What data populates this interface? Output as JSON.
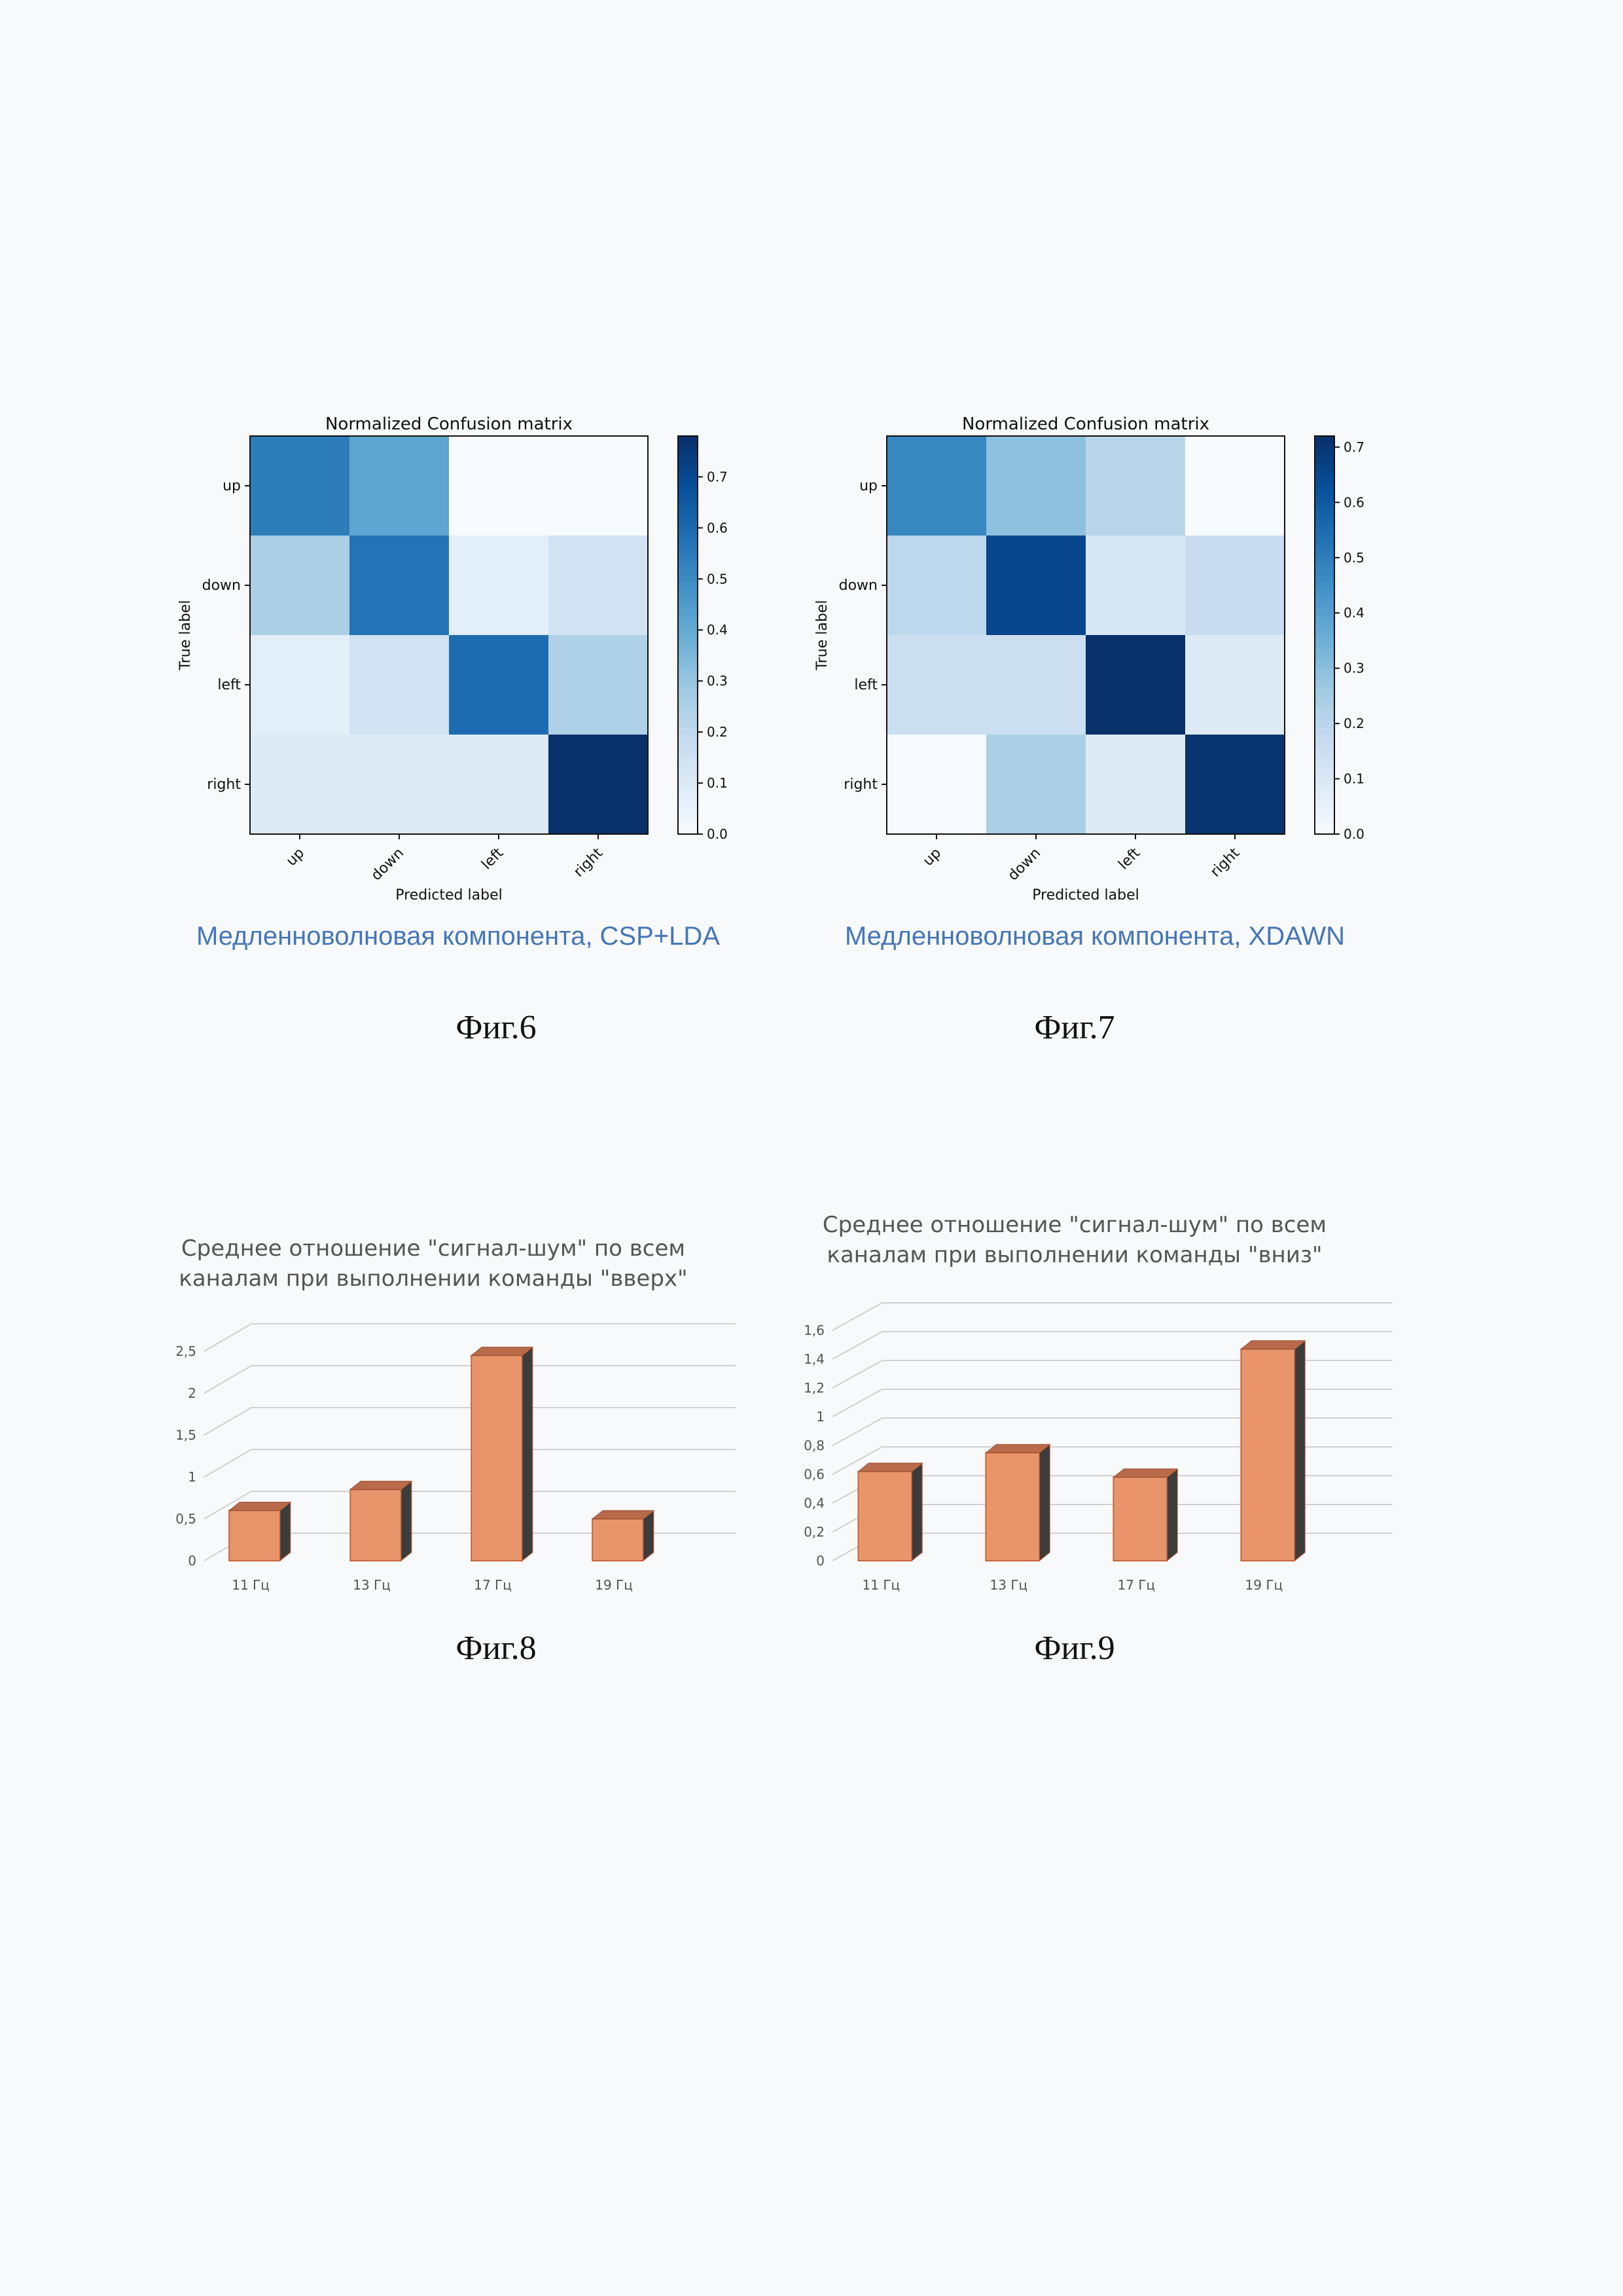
{
  "figures": [
    {
      "label": "Фиг.6",
      "caption": "Медленноволновая компонента, CSP+LDA"
    },
    {
      "label": "Фиг.7",
      "caption": "Медленноволновая компонента, XDAWN"
    },
    {
      "label": "Фиг.8"
    },
    {
      "label": "Фиг.9"
    }
  ],
  "chart_data": [
    {
      "type": "heatmap",
      "title": "Normalized Confusion matrix",
      "xlabel": "Predicted label",
      "ylabel": "True label",
      "categories": [
        "up",
        "down",
        "left",
        "right"
      ],
      "values": [
        [
          0.55,
          0.42,
          0.0,
          0.0
        ],
        [
          0.26,
          0.58,
          0.08,
          0.15
        ],
        [
          0.08,
          0.15,
          0.6,
          0.25
        ],
        [
          0.1,
          0.1,
          0.1,
          0.78
        ]
      ],
      "colorbar_ticks": [
        "0.0",
        "0.1",
        "0.2",
        "0.3",
        "0.4",
        "0.5",
        "0.6",
        "0.7"
      ],
      "vmax": 0.78
    },
    {
      "type": "heatmap",
      "title": "Normalized Confusion matrix",
      "xlabel": "Predicted label",
      "ylabel": "True label",
      "categories": [
        "up",
        "down",
        "left",
        "right"
      ],
      "values": [
        [
          0.48,
          0.3,
          0.21,
          0.0
        ],
        [
          0.2,
          0.66,
          0.12,
          0.17
        ],
        [
          0.16,
          0.16,
          0.72,
          0.09
        ],
        [
          0.0,
          0.24,
          0.09,
          0.71
        ]
      ],
      "colorbar_ticks": [
        "0.0",
        "0.1",
        "0.2",
        "0.3",
        "0.4",
        "0.5",
        "0.6",
        "0.7"
      ],
      "vmax": 0.72
    },
    {
      "type": "bar",
      "title": [
        "Среднее отношение \"сигнал-шум\" по всем",
        "каналам при выполнении команды \"вверх\""
      ],
      "categories": [
        "11 Гц",
        "13 Гц",
        "17 Гц",
        "19 Гц"
      ],
      "values": [
        0.6,
        0.85,
        2.45,
        0.5
      ],
      "ylim": [
        0,
        2.5
      ],
      "yticks": [
        "0",
        "0,5",
        "1",
        "1,5",
        "2",
        "2,5"
      ],
      "bar_color": "#e8956b"
    },
    {
      "type": "bar",
      "title": [
        "Среднее отношение \"сигнал-шум\" по всем",
        "каналам при выполнении команды \"вниз\""
      ],
      "categories": [
        "11 Гц",
        "13 Гц",
        "17 Гц",
        "19 Гц"
      ],
      "values": [
        0.62,
        0.75,
        0.58,
        1.47
      ],
      "ylim": [
        0,
        1.6
      ],
      "yticks": [
        "0",
        "0,2",
        "0,4",
        "0,6",
        "0,8",
        "1",
        "1,2",
        "1,4",
        "1,6"
      ],
      "bar_color": "#e8956b"
    }
  ]
}
